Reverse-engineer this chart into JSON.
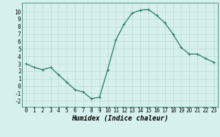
{
  "x": [
    0,
    1,
    2,
    3,
    4,
    5,
    6,
    7,
    8,
    9,
    10,
    11,
    12,
    13,
    14,
    15,
    16,
    17,
    18,
    19,
    20,
    21,
    22,
    23
  ],
  "y": [
    3.0,
    2.5,
    2.2,
    2.5,
    1.5,
    0.5,
    -0.5,
    -0.8,
    -1.7,
    -1.5,
    2.2,
    6.2,
    8.3,
    9.8,
    10.2,
    10.3,
    9.5,
    8.5,
    7.0,
    5.2,
    4.3,
    4.3,
    3.7,
    3.2
  ],
  "line_color": "#2e7d6e",
  "marker": "+",
  "marker_size": 3,
  "bg_color": "#d6f0ee",
  "grid_color": "#b8d8d4",
  "xlabel": "Humidex (Indice chaleur)",
  "xlabel_style": "italic",
  "xlim": [
    -0.5,
    23.5
  ],
  "ylim": [
    -2.8,
    11.2
  ],
  "xticks": [
    0,
    1,
    2,
    3,
    4,
    5,
    6,
    7,
    8,
    9,
    10,
    11,
    12,
    13,
    14,
    15,
    16,
    17,
    18,
    19,
    20,
    21,
    22,
    23
  ],
  "yticks": [
    -2,
    -1,
    0,
    1,
    2,
    3,
    4,
    5,
    6,
    7,
    8,
    9,
    10
  ],
  "tick_fontsize": 5.5,
  "xlabel_fontsize": 7,
  "line_width": 1.0
}
